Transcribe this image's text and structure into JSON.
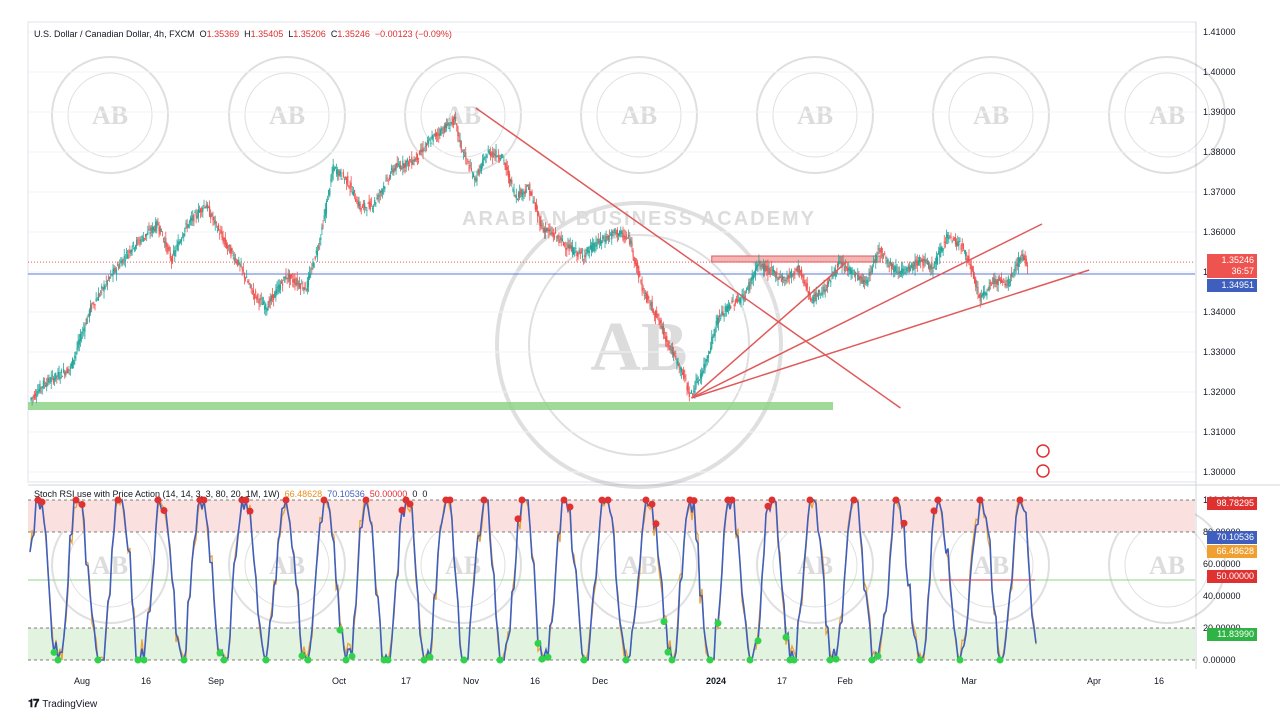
{
  "header": {
    "symbol": "U.S. Dollar / Canadian Dollar, 4h, FXCM",
    "open_label": "O",
    "open": "1.35369",
    "high_label": "H",
    "high": "1.35405",
    "low_label": "L",
    "low": "1.35206",
    "close_label": "C",
    "close": "1.35246",
    "change": "−0.00123 (−0.09%)"
  },
  "indicator_header": {
    "name": "Stoch RSI use with Price Action (14, 14, 3, 3, 80, 20, 1M, 1W)",
    "k_value": "66.48628",
    "d_value": "70.10536",
    "mid_value": "50.00000",
    "extra1": "0",
    "extra2": "0"
  },
  "footer": {
    "brand": "TradingView"
  },
  "watermark": {
    "text": "ARABIAN BUSINESS ACADEMY",
    "initials": "AB"
  },
  "price_axis": {
    "ticks": [
      "1.41000",
      "1.40000",
      "1.39000",
      "1.38000",
      "1.37000",
      "1.36000",
      "1.35000",
      "1.34000",
      "1.33000",
      "1.32000",
      "1.31000",
      "1.30000"
    ],
    "last_price": "1.35246",
    "countdown": "36:57",
    "hline_price": "1.34951"
  },
  "indicator_axis": {
    "ticks": [
      "100.00000",
      "80.00000",
      "60.00000",
      "40.00000",
      "20.00000",
      "0.00000"
    ],
    "labels": {
      "upper": "98.78295",
      "d": "70.10536",
      "k": "66.48628",
      "mid": "50.00000",
      "lower": "11.83990"
    }
  },
  "time_axis": [
    "Aug",
    "16",
    "Sep",
    "Oct",
    "17",
    "Nov",
    "16",
    "Dec",
    "2024",
    "17",
    "Feb",
    "Mar",
    "Apr",
    "16"
  ],
  "colors": {
    "up": "#26a69a",
    "down": "#ef5350",
    "trend": "#e05a5a",
    "hline": "#5b7bd5",
    "support": "#8fd48a",
    "k_line": "#f0a030",
    "d_line": "#3f5fbf",
    "overbought_zone": "#fbe0e0",
    "oversold_zone": "#e2f4df"
  },
  "chart_data": {
    "type": "candlestick",
    "symbol": "USDCAD",
    "timeframe": "4h",
    "x_labels": [
      "Aug",
      "16",
      "Sep",
      "Oct",
      "17",
      "Nov",
      "16",
      "Dec",
      "2024",
      "17",
      "Feb",
      "Mar",
      "Apr",
      "16"
    ],
    "ylim": [
      1.2975,
      1.4125
    ],
    "y_ticks": [
      1.41,
      1.4,
      1.39,
      1.38,
      1.37,
      1.36,
      1.35,
      1.34,
      1.33,
      1.32,
      1.31,
      1.3
    ],
    "price_path": [
      [
        0,
        1.318
      ],
      [
        2,
        1.322
      ],
      [
        6,
        1.326
      ],
      [
        9,
        1.341
      ],
      [
        12,
        1.349
      ],
      [
        15,
        1.356
      ],
      [
        19,
        1.362
      ],
      [
        21,
        1.353
      ],
      [
        23,
        1.361
      ],
      [
        26,
        1.367
      ],
      [
        29,
        1.357
      ],
      [
        31,
        1.352
      ],
      [
        33,
        1.345
      ],
      [
        35,
        1.341
      ],
      [
        38,
        1.349
      ],
      [
        41,
        1.346
      ],
      [
        43,
        1.358
      ],
      [
        45,
        1.376
      ],
      [
        47,
        1.373
      ],
      [
        49,
        1.366
      ],
      [
        51,
        1.367
      ],
      [
        54,
        1.376
      ],
      [
        57,
        1.378
      ],
      [
        60,
        1.384
      ],
      [
        63,
        1.388
      ],
      [
        64,
        1.381
      ],
      [
        66,
        1.373
      ],
      [
        68,
        1.38
      ],
      [
        70,
        1.379
      ],
      [
        72,
        1.369
      ],
      [
        74,
        1.371
      ],
      [
        76,
        1.361
      ],
      [
        78,
        1.359
      ],
      [
        80,
        1.356
      ],
      [
        82,
        1.354
      ],
      [
        84,
        1.357
      ],
      [
        87,
        1.36
      ],
      [
        89,
        1.358
      ],
      [
        91,
        1.345
      ],
      [
        93,
        1.339
      ],
      [
        95,
        1.331
      ],
      [
        97,
        1.324
      ],
      [
        98,
        1.319
      ],
      [
        100,
        1.326
      ],
      [
        102,
        1.338
      ],
      [
        104,
        1.342
      ],
      [
        106,
        1.344
      ],
      [
        108,
        1.352
      ],
      [
        110,
        1.35
      ],
      [
        112,
        1.348
      ],
      [
        114,
        1.351
      ],
      [
        116,
        1.343
      ],
      [
        118,
        1.346
      ],
      [
        120,
        1.352
      ],
      [
        122,
        1.35
      ],
      [
        124,
        1.347
      ],
      [
        126,
        1.356
      ],
      [
        128,
        1.351
      ],
      [
        130,
        1.35
      ],
      [
        132,
        1.353
      ],
      [
        134,
        1.351
      ],
      [
        136,
        1.359
      ],
      [
        138,
        1.357
      ],
      [
        139,
        1.354
      ],
      [
        141,
        1.343
      ],
      [
        143,
        1.348
      ],
      [
        145,
        1.347
      ],
      [
        147,
        1.354
      ],
      [
        148,
        1.352
      ]
    ],
    "last_close": 1.35246,
    "open": 1.35369,
    "high": 1.35405,
    "low": 1.35206,
    "horizontal_line": 1.34951,
    "resistance_zone": {
      "x": [
        101,
        126
      ],
      "y": [
        1.3525,
        1.354
      ]
    },
    "support_zone": {
      "x": [
        0,
        119
      ],
      "y": [
        1.3155,
        1.3175
      ]
    },
    "trendlines": [
      {
        "from": [
          66,
          1.391
        ],
        "to": [
          129,
          1.316
        ]
      },
      {
        "from": [
          98,
          1.3185
        ],
        "to": [
          121,
          1.3525
        ]
      },
      {
        "from": [
          98,
          1.3185
        ],
        "to": [
          150,
          1.362
        ]
      },
      {
        "from": [
          98,
          1.3185
        ],
        "to": [
          157,
          1.3505
        ]
      }
    ],
    "indicator": {
      "name": "Stoch RSI use with Price Action",
      "ylim": [
        0,
        100
      ],
      "overbought": 80,
      "oversold": 20,
      "mid": 50,
      "k_last": 66.48628,
      "d_last": 70.10536,
      "upper_marker": 98.78295,
      "lower_marker": 11.8399
    }
  }
}
